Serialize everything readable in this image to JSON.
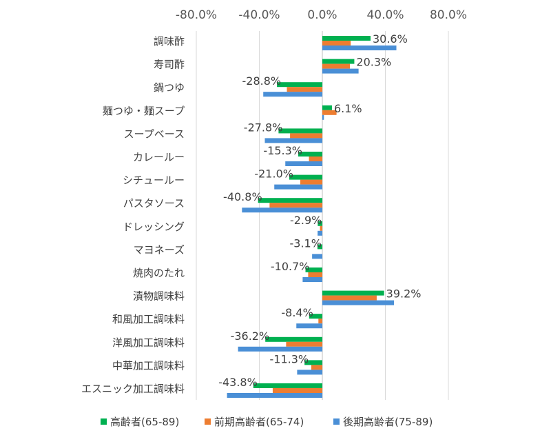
{
  "chart_data": {
    "type": "bar",
    "orientation": "horizontal",
    "categories": [
      "調味酢",
      "寿司酢",
      "鍋つゆ",
      "麺つゆ・麺スープ",
      "スープベース",
      "カレールー",
      "シチュールー",
      "パスタソース",
      "ドレッシング",
      "マヨネーズ",
      "焼肉のたれ",
      "漬物調味料",
      "和風加工調味料",
      "洋風加工調味料",
      "中華加工調味料",
      "エスニック加工調味料"
    ],
    "series": [
      {
        "name": "高齢者(65-89)",
        "color": "#00b050",
        "values": [
          30.6,
          20.3,
          -28.8,
          6.1,
          -27.8,
          -15.3,
          -21.0,
          -40.8,
          -2.9,
          -3.1,
          -10.7,
          39.2,
          -8.4,
          -36.2,
          -11.3,
          -43.8
        ]
      },
      {
        "name": "前期高齢者(65-74)",
        "color": "#ed7d31",
        "values": [
          18.0,
          17.5,
          -22.5,
          9.0,
          -20.5,
          -8.5,
          -14.0,
          -33.5,
          -1.5,
          0.0,
          -9.0,
          34.5,
          -2.5,
          -23.0,
          -7.0,
          -31.5
        ]
      },
      {
        "name": "後期高齢者(75-89)",
        "color": "#4a8fd6",
        "values": [
          47.0,
          23.0,
          -37.5,
          1.0,
          -36.5,
          -23.5,
          -30.5,
          -51.0,
          -3.0,
          -6.5,
          -12.5,
          45.5,
          -16.5,
          -53.5,
          -16.0,
          -60.5
        ]
      }
    ],
    "data_labels": [
      "30.6%",
      "20.3%",
      "-28.8%",
      "6.1%",
      "-27.8%",
      "-15.3%",
      "-21.0%",
      "-40.8%",
      "-2.9%",
      "-3.1%",
      "-10.7%",
      "39.2%",
      "-8.4%",
      "-36.2%",
      "-11.3%",
      "-43.8%"
    ],
    "x_ticks": [
      "-80.0%",
      "-40.0%",
      "0.0%",
      "40.0%",
      "80.0%"
    ],
    "xlim": [
      -80,
      80
    ],
    "x_tick_values": [
      -80,
      -40,
      0,
      40,
      80
    ],
    "x_axis_position": "top",
    "grid": true,
    "legend_position": "bottom"
  }
}
